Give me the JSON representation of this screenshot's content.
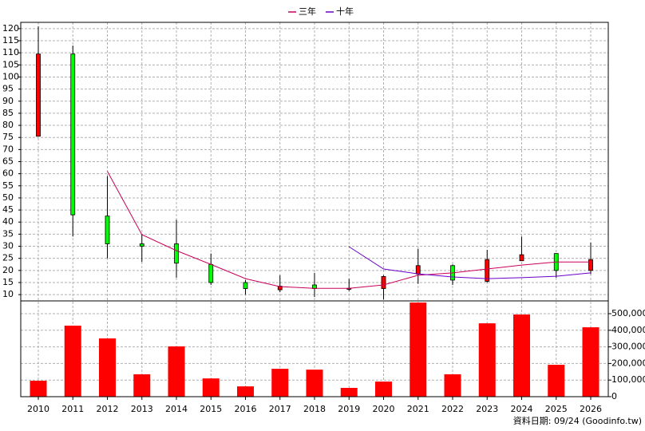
{
  "chart_data": [
    {
      "type": "candlestick",
      "categories": [
        "2010",
        "2011",
        "2012",
        "2013",
        "2014",
        "2015",
        "2016",
        "2017",
        "2018",
        "2019",
        "2020",
        "2021",
        "2022",
        "2023",
        "2024",
        "2025",
        "2026"
      ],
      "open": [
        75.5,
        109.5,
        42.5,
        31,
        31,
        22.5,
        15,
        12,
        14,
        12.2,
        12.5,
        18.5,
        22,
        15.5,
        24,
        27,
        20
      ],
      "high": [
        121,
        113,
        59,
        35,
        41,
        27,
        16,
        18,
        19,
        16.5,
        18,
        29,
        22.5,
        28.5,
        34,
        27,
        31.5
      ],
      "low": [
        75.5,
        34,
        25,
        23.5,
        17,
        14,
        10,
        11,
        9,
        11.5,
        8,
        14.5,
        14,
        15,
        24,
        17,
        18.5
      ],
      "close": [
        109.5,
        43,
        31,
        30,
        23,
        15,
        12.5,
        13.5,
        12.5,
        12.6,
        17.5,
        22,
        16,
        24.5,
        26.5,
        20,
        24.5
      ],
      "up_color": "#ff0000",
      "down_color": "#00ff00",
      "series": [
        {
          "name": "三年",
          "color": "#c8005a",
          "values": [
            null,
            null,
            61,
            34.8,
            28.2,
            22.5,
            16.6,
            13.3,
            12.6,
            12.6,
            14,
            18,
            19,
            20.6,
            22.2,
            23.5,
            23.5
          ]
        },
        {
          "name": "十年",
          "color": "#6a00c8",
          "values": [
            null,
            null,
            null,
            null,
            null,
            null,
            null,
            null,
            null,
            29.8,
            20.6,
            18.6,
            17.3,
            16.6,
            17,
            17.6,
            19
          ]
        }
      ],
      "ylim": [
        7.4,
        122.6
      ],
      "yticks": [
        10,
        15,
        20,
        25,
        30,
        35,
        40,
        45,
        50,
        55,
        60,
        65,
        70,
        75,
        80,
        85,
        90,
        95,
        100,
        105,
        110,
        115,
        120
      ],
      "grid": true,
      "legend": "top"
    },
    {
      "type": "bar",
      "values": [
        96000,
        428000,
        351000,
        135000,
        303000,
        110000,
        62000,
        168000,
        163000,
        53000,
        91000,
        567000,
        135000,
        442000,
        495000,
        192000,
        418000
      ],
      "color": "#ff0000",
      "ylim": [
        0,
        577000
      ],
      "yticks": [
        0,
        {
          "value": 100000,
          "label": "100,000"
        },
        {
          "value": 200000,
          "label": "200,000"
        },
        {
          "value": 300000,
          "label": "300,000"
        },
        {
          "value": 400000,
          "label": "400,000"
        },
        {
          "value": 500000,
          "label": "500,000"
        }
      ],
      "grid": true
    }
  ],
  "footer": "資料日期: 09/24 (Goodinfo.tw)"
}
